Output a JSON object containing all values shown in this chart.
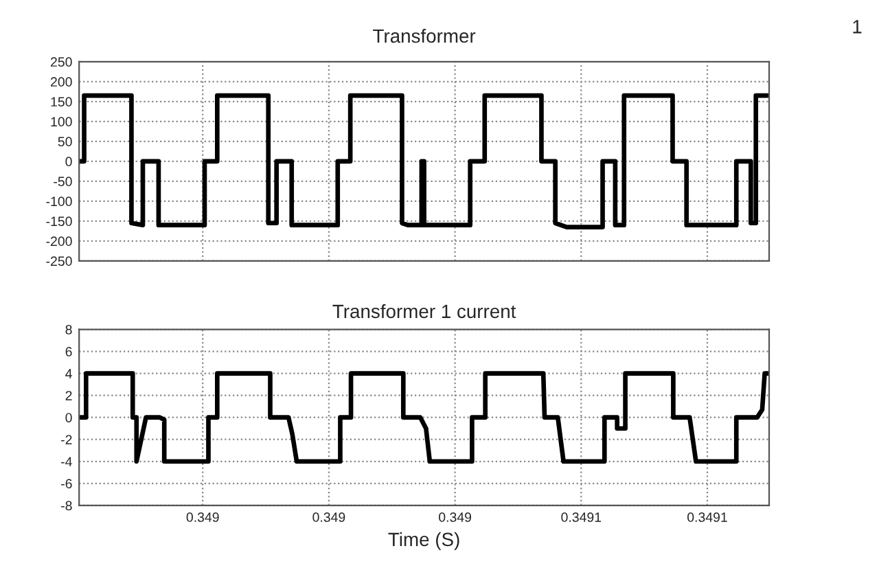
{
  "chart_data": [
    {
      "type": "line",
      "title": "Transformer",
      "annotations": [
        "1"
      ],
      "grid": true,
      "line_style": "solid",
      "marker": "none",
      "tick_labels": "y",
      "xlim": [
        0.3489804,
        0.3490898
      ],
      "xticks": [
        {
          "value": 0.349,
          "label": null
        },
        {
          "value": 0.34902,
          "label": null
        },
        {
          "value": 0.34904,
          "label": null
        },
        {
          "value": 0.34906,
          "label": null
        },
        {
          "value": 0.34908,
          "label": null
        }
      ],
      "ylim": [
        -250,
        250
      ],
      "yticks": [
        -250,
        -200,
        -150,
        -100,
        -50,
        0,
        50,
        100,
        150,
        200,
        250
      ],
      "series": [
        {
          "color": "#000000",
          "x": [
            0.3489804,
            0.3489812,
            0.3489812,
            0.3489887,
            0.3489887,
            0.3489905,
            0.3489905,
            0.348993,
            0.348993,
            0.3490003,
            0.3490003,
            0.3490023,
            0.3490023,
            0.3490104,
            0.3490104,
            0.3490117,
            0.3490117,
            0.3490141,
            0.3490141,
            0.3490214,
            0.3490214,
            0.3490234,
            0.3490234,
            0.3490316,
            0.3490316,
            0.3490325,
            0.3490347,
            0.3490347,
            0.3490351,
            0.3490351,
            0.3490424,
            0.3490424,
            0.3490447,
            0.3490447,
            0.3490537,
            0.3490537,
            0.3490559,
            0.3490559,
            0.3490577,
            0.3490634,
            0.3490634,
            0.3490654,
            0.3490654,
            0.3490668,
            0.3490668,
            0.3490745,
            0.3490745,
            0.3490767,
            0.3490767,
            0.3490846,
            0.3490846,
            0.3490869,
            0.3490869,
            0.3490877,
            0.3490877,
            0.3490895
          ],
          "values": [
            0,
            0,
            165,
            165,
            -155,
            -160,
            0,
            0,
            -160,
            -160,
            0,
            0,
            165,
            165,
            -155,
            -155,
            0,
            0,
            -160,
            -160,
            0,
            0,
            165,
            165,
            -155,
            -160,
            -160,
            0,
            0,
            -160,
            -160,
            0,
            0,
            165,
            165,
            0,
            0,
            -155,
            -165,
            -165,
            0,
            0,
            -160,
            -160,
            165,
            165,
            0,
            0,
            -160,
            -160,
            0,
            0,
            -155,
            -155,
            165,
            165
          ]
        }
      ]
    },
    {
      "type": "line",
      "title": "Transformer 1 current",
      "xlabel": "Time (S)",
      "grid": true,
      "line_style": "solid",
      "marker": "none",
      "xlim": [
        0.3489804,
        0.3490898
      ],
      "xticks": [
        {
          "value": 0.349,
          "label": "0.349"
        },
        {
          "value": 0.34902,
          "label": "0.349"
        },
        {
          "value": 0.34904,
          "label": "0.349"
        },
        {
          "value": 0.34906,
          "label": "0.3491"
        },
        {
          "value": 0.34908,
          "label": "0.3491"
        }
      ],
      "ylim": [
        -8,
        8
      ],
      "yticks": [
        -8,
        -6,
        -4,
        -2,
        0,
        2,
        4,
        6,
        8
      ],
      "series": [
        {
          "color": "#000000",
          "x": [
            0.3489806,
            0.3489815,
            0.3489815,
            0.3489889,
            0.3489889,
            0.3489895,
            0.3489895,
            0.348991,
            0.348991,
            0.3489932,
            0.3489939,
            0.3489939,
            0.3490009,
            0.3490009,
            0.3490023,
            0.3490023,
            0.3490107,
            0.3490107,
            0.3490136,
            0.3490142,
            0.3490149,
            0.3490218,
            0.3490218,
            0.3490235,
            0.3490235,
            0.3490318,
            0.3490318,
            0.3490345,
            0.3490354,
            0.349036,
            0.3490427,
            0.3490427,
            0.3490448,
            0.3490448,
            0.349054,
            0.3490542,
            0.3490563,
            0.3490572,
            0.3490637,
            0.3490637,
            0.3490657,
            0.3490657,
            0.349067,
            0.349067,
            0.3490746,
            0.3490746,
            0.3490772,
            0.3490782,
            0.3490846,
            0.3490846,
            0.3490879,
            0.3490887,
            0.3490891,
            0.3490898
          ],
          "values": [
            0,
            0,
            4,
            4,
            0,
            0,
            -4,
            0,
            0,
            0,
            -0.2,
            -4,
            -4,
            0,
            0,
            4,
            4,
            0,
            0,
            -1.5,
            -4,
            -4,
            0,
            0,
            4,
            4,
            0,
            0,
            -1,
            -4,
            -4,
            0,
            0,
            4,
            4,
            0,
            0,
            -4,
            -4,
            0,
            0,
            -1,
            -1,
            4,
            4,
            0,
            0,
            -4,
            -4,
            0,
            0,
            0.7,
            4,
            4
          ]
        }
      ]
    }
  ]
}
